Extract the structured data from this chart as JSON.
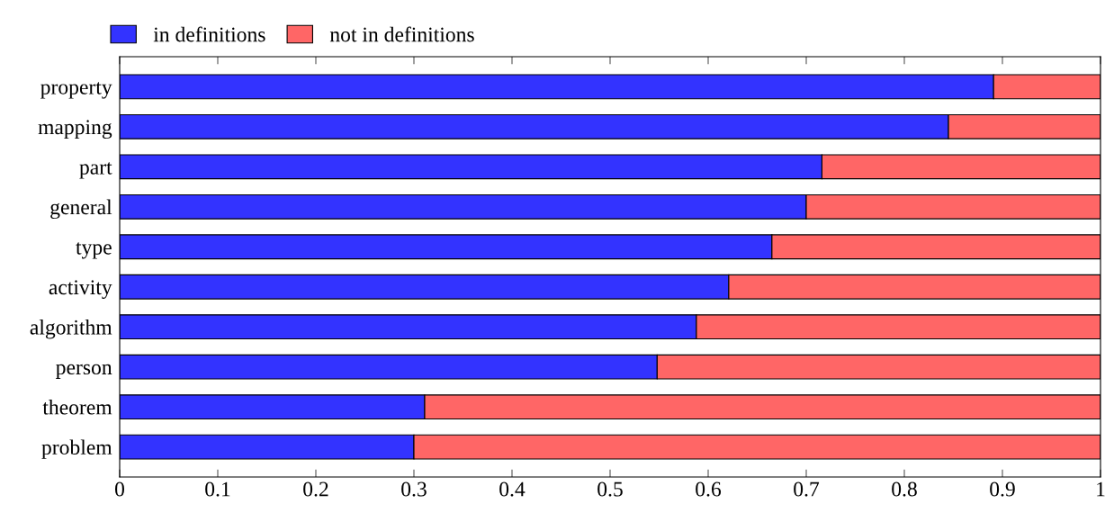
{
  "chart_data": {
    "type": "bar",
    "orientation": "horizontal",
    "stacked": true,
    "categories": [
      "property",
      "mapping",
      "part",
      "general",
      "type",
      "activity",
      "algorithm",
      "person",
      "theorem",
      "problem"
    ],
    "series": [
      {
        "name": "in definitions",
        "color": "#3333ff",
        "values": [
          0.891,
          0.845,
          0.716,
          0.7,
          0.665,
          0.621,
          0.588,
          0.548,
          0.311,
          0.3
        ]
      },
      {
        "name": "not in definitions",
        "color": "#ff6666",
        "values": [
          0.109,
          0.155,
          0.284,
          0.3,
          0.335,
          0.379,
          0.412,
          0.452,
          0.689,
          0.7
        ]
      }
    ],
    "xlim": [
      0,
      1
    ],
    "xticks": [
      0,
      0.1,
      0.2,
      0.3,
      0.4,
      0.5,
      0.6,
      0.7,
      0.8,
      0.9,
      1
    ],
    "grid": false,
    "legend": "top left"
  }
}
